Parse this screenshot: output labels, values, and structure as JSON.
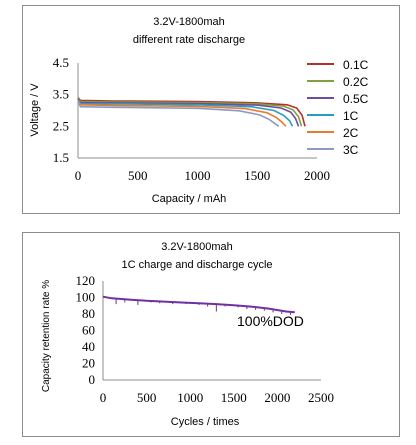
{
  "chart_data": [
    {
      "type": "line",
      "title": "3.2V-1800mah",
      "subtitle": "different rate discharge",
      "xlabel": "Capacity / mAh",
      "ylabel": "Voltage / V",
      "xlim": [
        0,
        2000
      ],
      "ylim": [
        1.5,
        4.5
      ],
      "xticks": [
        "0",
        "500",
        "1000",
        "1500",
        "2000"
      ],
      "yticks": [
        "4.5",
        "3.5",
        "2.5",
        "1.5"
      ],
      "grid": false,
      "legend_position": "right",
      "series": [
        {
          "name": "0.1C",
          "color": "#b2302c",
          "x": [
            0,
            20,
            300,
            1000,
            1500,
            1750,
            1830,
            1875,
            1900
          ],
          "y": [
            3.4,
            3.32,
            3.3,
            3.28,
            3.24,
            3.18,
            3.08,
            2.85,
            2.5
          ]
        },
        {
          "name": "0.2C",
          "color": "#7ea33c",
          "x": [
            0,
            20,
            300,
            1000,
            1500,
            1720,
            1800,
            1845,
            1870
          ],
          "y": [
            3.38,
            3.28,
            3.27,
            3.25,
            3.21,
            3.14,
            3.02,
            2.8,
            2.5
          ]
        },
        {
          "name": "0.5C",
          "color": "#6f4d9c",
          "x": [
            0,
            20,
            300,
            1000,
            1500,
            1700,
            1780,
            1820,
            1845
          ],
          "y": [
            3.36,
            3.25,
            3.24,
            3.22,
            3.17,
            3.08,
            2.95,
            2.75,
            2.5
          ]
        },
        {
          "name": "1C",
          "color": "#2b9cc0",
          "x": [
            0,
            20,
            300,
            1000,
            1450,
            1640,
            1720,
            1770,
            1795
          ],
          "y": [
            3.34,
            3.22,
            3.21,
            3.18,
            3.12,
            3.0,
            2.85,
            2.68,
            2.5
          ]
        },
        {
          "name": "2C",
          "color": "#e87a2c",
          "x": [
            0,
            20,
            300,
            1000,
            1400,
            1580,
            1660,
            1710,
            1740
          ],
          "y": [
            3.32,
            3.18,
            3.16,
            3.13,
            3.06,
            2.93,
            2.78,
            2.62,
            2.5
          ]
        },
        {
          "name": "3C",
          "color": "#8a9ac4",
          "x": [
            0,
            20,
            300,
            1000,
            1350,
            1520,
            1600,
            1650,
            1680
          ],
          "y": [
            3.3,
            3.12,
            3.1,
            3.07,
            2.99,
            2.86,
            2.72,
            2.58,
            2.5
          ]
        }
      ]
    },
    {
      "type": "line",
      "title": "3.2V-1800mah",
      "subtitle": "1C charge and discharge cycle",
      "xlabel": "Cycles / times",
      "ylabel": "Capacity retention rate %",
      "xlim": [
        0,
        2500
      ],
      "ylim": [
        0,
        120
      ],
      "xticks": [
        "0",
        "500",
        "1000",
        "1500",
        "2000",
        "2500"
      ],
      "yticks": [
        "120",
        "100",
        "80",
        "60",
        "40",
        "20",
        "0"
      ],
      "grid": false,
      "annotation": "100%DOD",
      "series": [
        {
          "color": "#7030a0",
          "x": [
            0,
            100,
            300,
            500,
            700,
            900,
            1100,
            1300,
            1500,
            1700,
            1900,
            2100,
            2200
          ],
          "y": [
            101,
            99,
            97.5,
            96,
            95,
            94,
            93,
            92,
            90.5,
            89,
            86.5,
            83,
            82
          ],
          "dips": [
            [
              150,
              92
            ],
            [
              250,
              94
            ],
            [
              400,
              91
            ],
            [
              550,
              94
            ],
            [
              650,
              93
            ],
            [
              800,
              92
            ],
            [
              950,
              92
            ],
            [
              1100,
              91
            ],
            [
              1200,
              89
            ],
            [
              1300,
              83
            ],
            [
              1400,
              89
            ],
            [
              1550,
              88
            ],
            [
              1650,
              86
            ],
            [
              1750,
              85
            ],
            [
              1850,
              84
            ],
            [
              1950,
              82
            ],
            [
              2050,
              80
            ],
            [
              2150,
              79
            ]
          ]
        }
      ]
    }
  ]
}
